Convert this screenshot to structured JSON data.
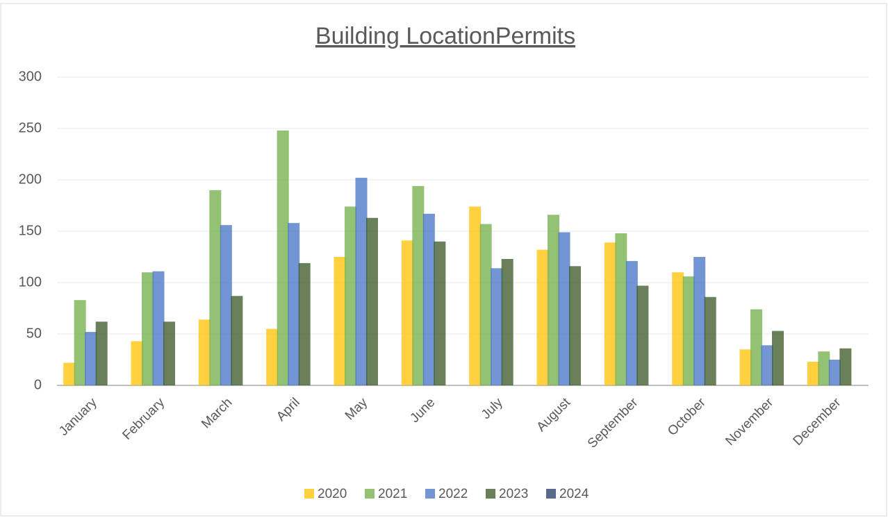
{
  "chart_data": {
    "type": "bar",
    "title": "Building LocationPermits",
    "categories": [
      "January",
      "February",
      "March",
      "April",
      "May",
      "June",
      "July",
      "August",
      "September",
      "October",
      "November",
      "December"
    ],
    "series": [
      {
        "name": "2020",
        "color": "#ffc000",
        "values": [
          22,
          43,
          64,
          55,
          125,
          141,
          174,
          132,
          139,
          110,
          35,
          23
        ]
      },
      {
        "name": "2021",
        "color": "#70ad47",
        "values": [
          83,
          110,
          190,
          248,
          174,
          194,
          157,
          166,
          148,
          106,
          74,
          33
        ]
      },
      {
        "name": "2022",
        "color": "#4472c4",
        "values": [
          52,
          111,
          156,
          158,
          202,
          167,
          114,
          149,
          121,
          125,
          39,
          25
        ]
      },
      {
        "name": "2023",
        "color": "#375623",
        "values": [
          62,
          62,
          87,
          119,
          163,
          140,
          123,
          116,
          97,
          86,
          53,
          36
        ]
      },
      {
        "name": "2024",
        "color": "#203864",
        "values": [
          null,
          null,
          null,
          null,
          null,
          null,
          null,
          null,
          null,
          null,
          null,
          null
        ]
      }
    ],
    "ylim": [
      0,
      300
    ],
    "yticks": [
      0,
      50,
      100,
      150,
      200,
      250,
      300
    ],
    "grid": true,
    "legend": "bottom"
  }
}
